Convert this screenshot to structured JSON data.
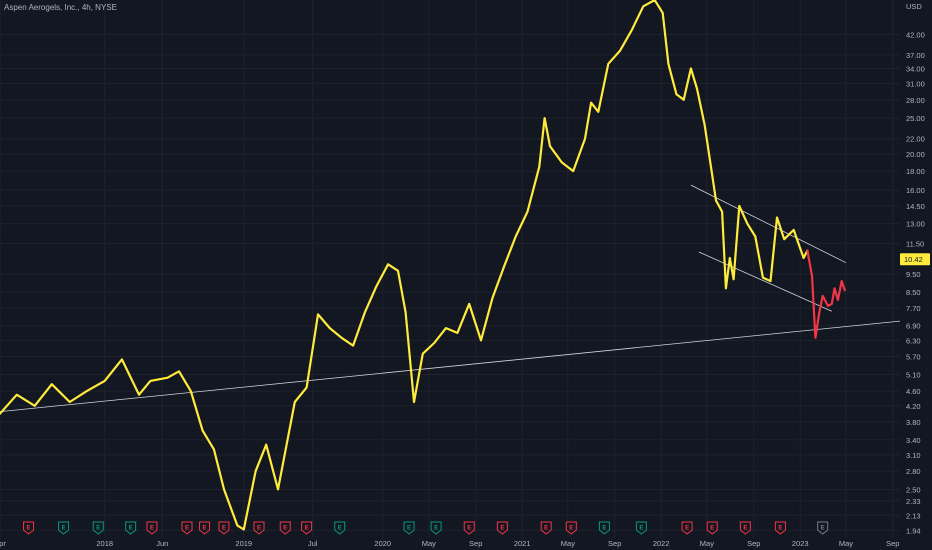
{
  "header": {
    "title": "Aspen Aerogels, Inc., 4h, NYSE"
  },
  "chart_data": {
    "type": "line",
    "title": "Aspen Aerogels, Inc., 4h, NYSE",
    "y_axis": {
      "unit": "USD",
      "scale": "log",
      "range": [
        1.85,
        52
      ],
      "ticks": [
        42.0,
        37.0,
        34.0,
        31.0,
        28.0,
        25.0,
        22.0,
        20.0,
        18.0,
        16.0,
        14.5,
        13.0,
        11.5,
        9.5,
        8.5,
        7.7,
        6.9,
        6.3,
        5.7,
        5.1,
        4.6,
        4.2,
        3.8,
        3.4,
        3.1,
        2.8,
        2.5,
        2.33,
        2.13,
        1.94
      ],
      "tick_labels": [
        "42.00",
        "37.00",
        "34.00",
        "31.00",
        "28.00",
        "25.00",
        "22.00",
        "20.00",
        "18.00",
        "16.00",
        "14.50",
        "13.00",
        "11.50",
        "9.50",
        "8.50",
        "7.70",
        "6.90",
        "6.30",
        "5.70",
        "5.10",
        "4.60",
        "4.20",
        "3.80",
        "3.40",
        "3.10",
        "2.80",
        "2.50",
        "2.33",
        "2.13",
        "1.94"
      ]
    },
    "x_axis": {
      "range": [
        "2017-04-01",
        "2023-09-20"
      ],
      "ticks": [
        "2017-04-01",
        "2018-01-01",
        "2018-06-01",
        "2019-01-01",
        "2019-07-01",
        "2020-01-01",
        "2020-05-01",
        "2020-09-01",
        "2021-01-01",
        "2021-05-01",
        "2021-09-01",
        "2022-01-01",
        "2022-05-01",
        "2022-09-01",
        "2023-01-01",
        "2023-05-01",
        "2023-09-01"
      ],
      "tick_labels": [
        "Apr",
        "2018",
        "Jun",
        "2019",
        "Jul",
        "2020",
        "May",
        "Sep",
        "2021",
        "May",
        "Sep",
        "2022",
        "May",
        "Sep",
        "2023",
        "May",
        "Sep"
      ]
    },
    "current_price": {
      "value": 10.42,
      "label": "10.42",
      "color": "#ffeb3b"
    },
    "series": [
      {
        "color": "#ffeb3b",
        "points": [
          [
            "2017-04-01",
            4.0
          ],
          [
            "2017-05-15",
            4.5
          ],
          [
            "2017-07-01",
            4.2
          ],
          [
            "2017-08-15",
            4.8
          ],
          [
            "2017-10-01",
            4.3
          ],
          [
            "2017-11-15",
            4.6
          ],
          [
            "2018-01-01",
            4.9
          ],
          [
            "2018-02-15",
            5.6
          ],
          [
            "2018-04-01",
            4.5
          ],
          [
            "2018-05-01",
            4.9
          ],
          [
            "2018-06-15",
            5.0
          ],
          [
            "2018-07-15",
            5.2
          ],
          [
            "2018-08-15",
            4.6
          ],
          [
            "2018-09-15",
            3.6
          ],
          [
            "2018-10-15",
            3.2
          ],
          [
            "2018-11-10",
            2.5
          ],
          [
            "2018-12-15",
            2.0
          ],
          [
            "2019-01-01",
            1.95
          ],
          [
            "2019-02-01",
            2.8
          ],
          [
            "2019-03-01",
            3.3
          ],
          [
            "2019-04-01",
            2.5
          ],
          [
            "2019-05-15",
            4.3
          ],
          [
            "2019-06-15",
            4.7
          ],
          [
            "2019-07-15",
            7.4
          ],
          [
            "2019-08-15",
            6.8
          ],
          [
            "2019-09-15",
            6.4
          ],
          [
            "2019-10-15",
            6.1
          ],
          [
            "2019-11-15",
            7.5
          ],
          [
            "2019-12-15",
            8.8
          ],
          [
            "2020-01-15",
            10.1
          ],
          [
            "2020-02-10",
            9.7
          ],
          [
            "2020-03-01",
            7.5
          ],
          [
            "2020-03-23",
            4.3
          ],
          [
            "2020-04-15",
            5.8
          ],
          [
            "2020-05-15",
            6.2
          ],
          [
            "2020-06-15",
            6.8
          ],
          [
            "2020-07-15",
            6.6
          ],
          [
            "2020-08-15",
            7.9
          ],
          [
            "2020-09-15",
            6.3
          ],
          [
            "2020-10-15",
            8.2
          ],
          [
            "2020-11-15",
            10.0
          ],
          [
            "2020-12-15",
            12.0
          ],
          [
            "2021-01-15",
            14.0
          ],
          [
            "2021-02-15",
            18.5
          ],
          [
            "2021-03-01",
            25.0
          ],
          [
            "2021-03-15",
            21.0
          ],
          [
            "2021-04-15",
            19.0
          ],
          [
            "2021-05-15",
            18.0
          ],
          [
            "2021-06-15",
            22.0
          ],
          [
            "2021-07-01",
            27.5
          ],
          [
            "2021-07-20",
            26.0
          ],
          [
            "2021-08-15",
            35.0
          ],
          [
            "2021-09-15",
            38.0
          ],
          [
            "2021-10-15",
            43.0
          ],
          [
            "2021-11-15",
            50.0
          ],
          [
            "2021-12-15",
            52.0
          ],
          [
            "2022-01-05",
            48.0
          ],
          [
            "2022-01-20",
            35.0
          ],
          [
            "2022-02-10",
            29.0
          ],
          [
            "2022-03-01",
            28.0
          ],
          [
            "2022-03-20",
            34.0
          ],
          [
            "2022-04-05",
            30.0
          ],
          [
            "2022-04-25",
            24.0
          ],
          [
            "2022-05-10",
            19.0
          ],
          [
            "2022-05-25",
            15.0
          ],
          [
            "2022-06-10",
            14.0
          ],
          [
            "2022-06-20",
            8.7
          ],
          [
            "2022-06-30",
            10.5
          ],
          [
            "2022-07-10",
            9.2
          ],
          [
            "2022-07-25",
            14.5
          ],
          [
            "2022-08-15",
            13.0
          ],
          [
            "2022-09-05",
            12.0
          ],
          [
            "2022-09-25",
            9.3
          ],
          [
            "2022-10-15",
            9.1
          ],
          [
            "2022-11-01",
            13.5
          ],
          [
            "2022-11-20",
            11.8
          ],
          [
            "2022-12-15",
            12.5
          ],
          [
            "2023-01-10",
            10.5
          ],
          [
            "2023-01-20",
            11.0
          ]
        ]
      },
      {
        "color": "#f23645",
        "points": [
          [
            "2023-01-20",
            11.0
          ],
          [
            "2023-02-01",
            9.4
          ],
          [
            "2023-02-10",
            6.4
          ],
          [
            "2023-02-20",
            7.5
          ],
          [
            "2023-03-01",
            8.3
          ],
          [
            "2023-03-15",
            7.8
          ],
          [
            "2023-03-25",
            7.9
          ],
          [
            "2023-04-01",
            8.7
          ],
          [
            "2023-04-10",
            8.1
          ],
          [
            "2023-04-20",
            9.1
          ],
          [
            "2023-04-28",
            8.6
          ]
        ]
      }
    ],
    "trendlines": [
      {
        "from": [
          "2017-04-01",
          4.05
        ],
        "to": [
          "2023-09-20",
          7.1
        ],
        "color": "#d1d4dc"
      },
      {
        "from": [
          "2022-03-20",
          16.5
        ],
        "to": [
          "2023-05-01",
          10.2
        ],
        "color": "#d1d4dc"
      },
      {
        "from": [
          "2022-04-10",
          10.9
        ],
        "to": [
          "2023-03-25",
          7.55
        ],
        "color": "#d1d4dc"
      }
    ],
    "events": [
      {
        "date": "2017-06-15",
        "label": "E",
        "kind": "earnings",
        "color": "#f23645"
      },
      {
        "date": "2017-09-15",
        "label": "E",
        "kind": "earnings",
        "color": "#089981"
      },
      {
        "date": "2017-12-15",
        "label": "E",
        "kind": "earnings",
        "color": "#089981"
      },
      {
        "date": "2018-03-10",
        "label": "E",
        "kind": "earnings",
        "color": "#089981"
      },
      {
        "date": "2018-05-05",
        "label": "E",
        "kind": "earnings",
        "color": "#f23645"
      },
      {
        "date": "2018-08-05",
        "label": "E",
        "kind": "earnings",
        "color": "#f23645"
      },
      {
        "date": "2018-09-20",
        "label": "E",
        "kind": "earnings",
        "color": "#f23645"
      },
      {
        "date": "2018-11-10",
        "label": "E",
        "kind": "earnings",
        "color": "#f23645"
      },
      {
        "date": "2019-02-10",
        "label": "E",
        "kind": "earnings",
        "color": "#f23645"
      },
      {
        "date": "2019-04-20",
        "label": "E",
        "kind": "earnings",
        "color": "#f23645"
      },
      {
        "date": "2019-06-15",
        "label": "E",
        "kind": "earnings",
        "color": "#f23645"
      },
      {
        "date": "2019-09-10",
        "label": "E",
        "kind": "earnings",
        "color": "#089981"
      },
      {
        "date": "2020-03-10",
        "label": "E",
        "kind": "earnings",
        "color": "#089981"
      },
      {
        "date": "2020-05-20",
        "label": "E",
        "kind": "earnings",
        "color": "#089981"
      },
      {
        "date": "2020-08-15",
        "label": "E",
        "kind": "earnings",
        "color": "#f23645"
      },
      {
        "date": "2020-11-10",
        "label": "E",
        "kind": "earnings",
        "color": "#f23645"
      },
      {
        "date": "2021-03-05",
        "label": "E",
        "kind": "earnings",
        "color": "#f23645"
      },
      {
        "date": "2021-05-10",
        "label": "E",
        "kind": "earnings",
        "color": "#f23645"
      },
      {
        "date": "2021-08-05",
        "label": "E",
        "kind": "earnings",
        "color": "#089981"
      },
      {
        "date": "2021-11-10",
        "label": "E",
        "kind": "earnings",
        "color": "#089981"
      },
      {
        "date": "2022-03-10",
        "label": "E",
        "kind": "earnings",
        "color": "#f23645"
      },
      {
        "date": "2022-05-15",
        "label": "E",
        "kind": "earnings",
        "color": "#f23645"
      },
      {
        "date": "2022-08-10",
        "label": "E",
        "kind": "earnings",
        "color": "#f23645"
      },
      {
        "date": "2022-11-10",
        "label": "E",
        "kind": "earnings",
        "color": "#f23645"
      },
      {
        "date": "2023-03-01",
        "label": "E",
        "kind": "upcoming",
        "color": "#787b86"
      }
    ]
  }
}
